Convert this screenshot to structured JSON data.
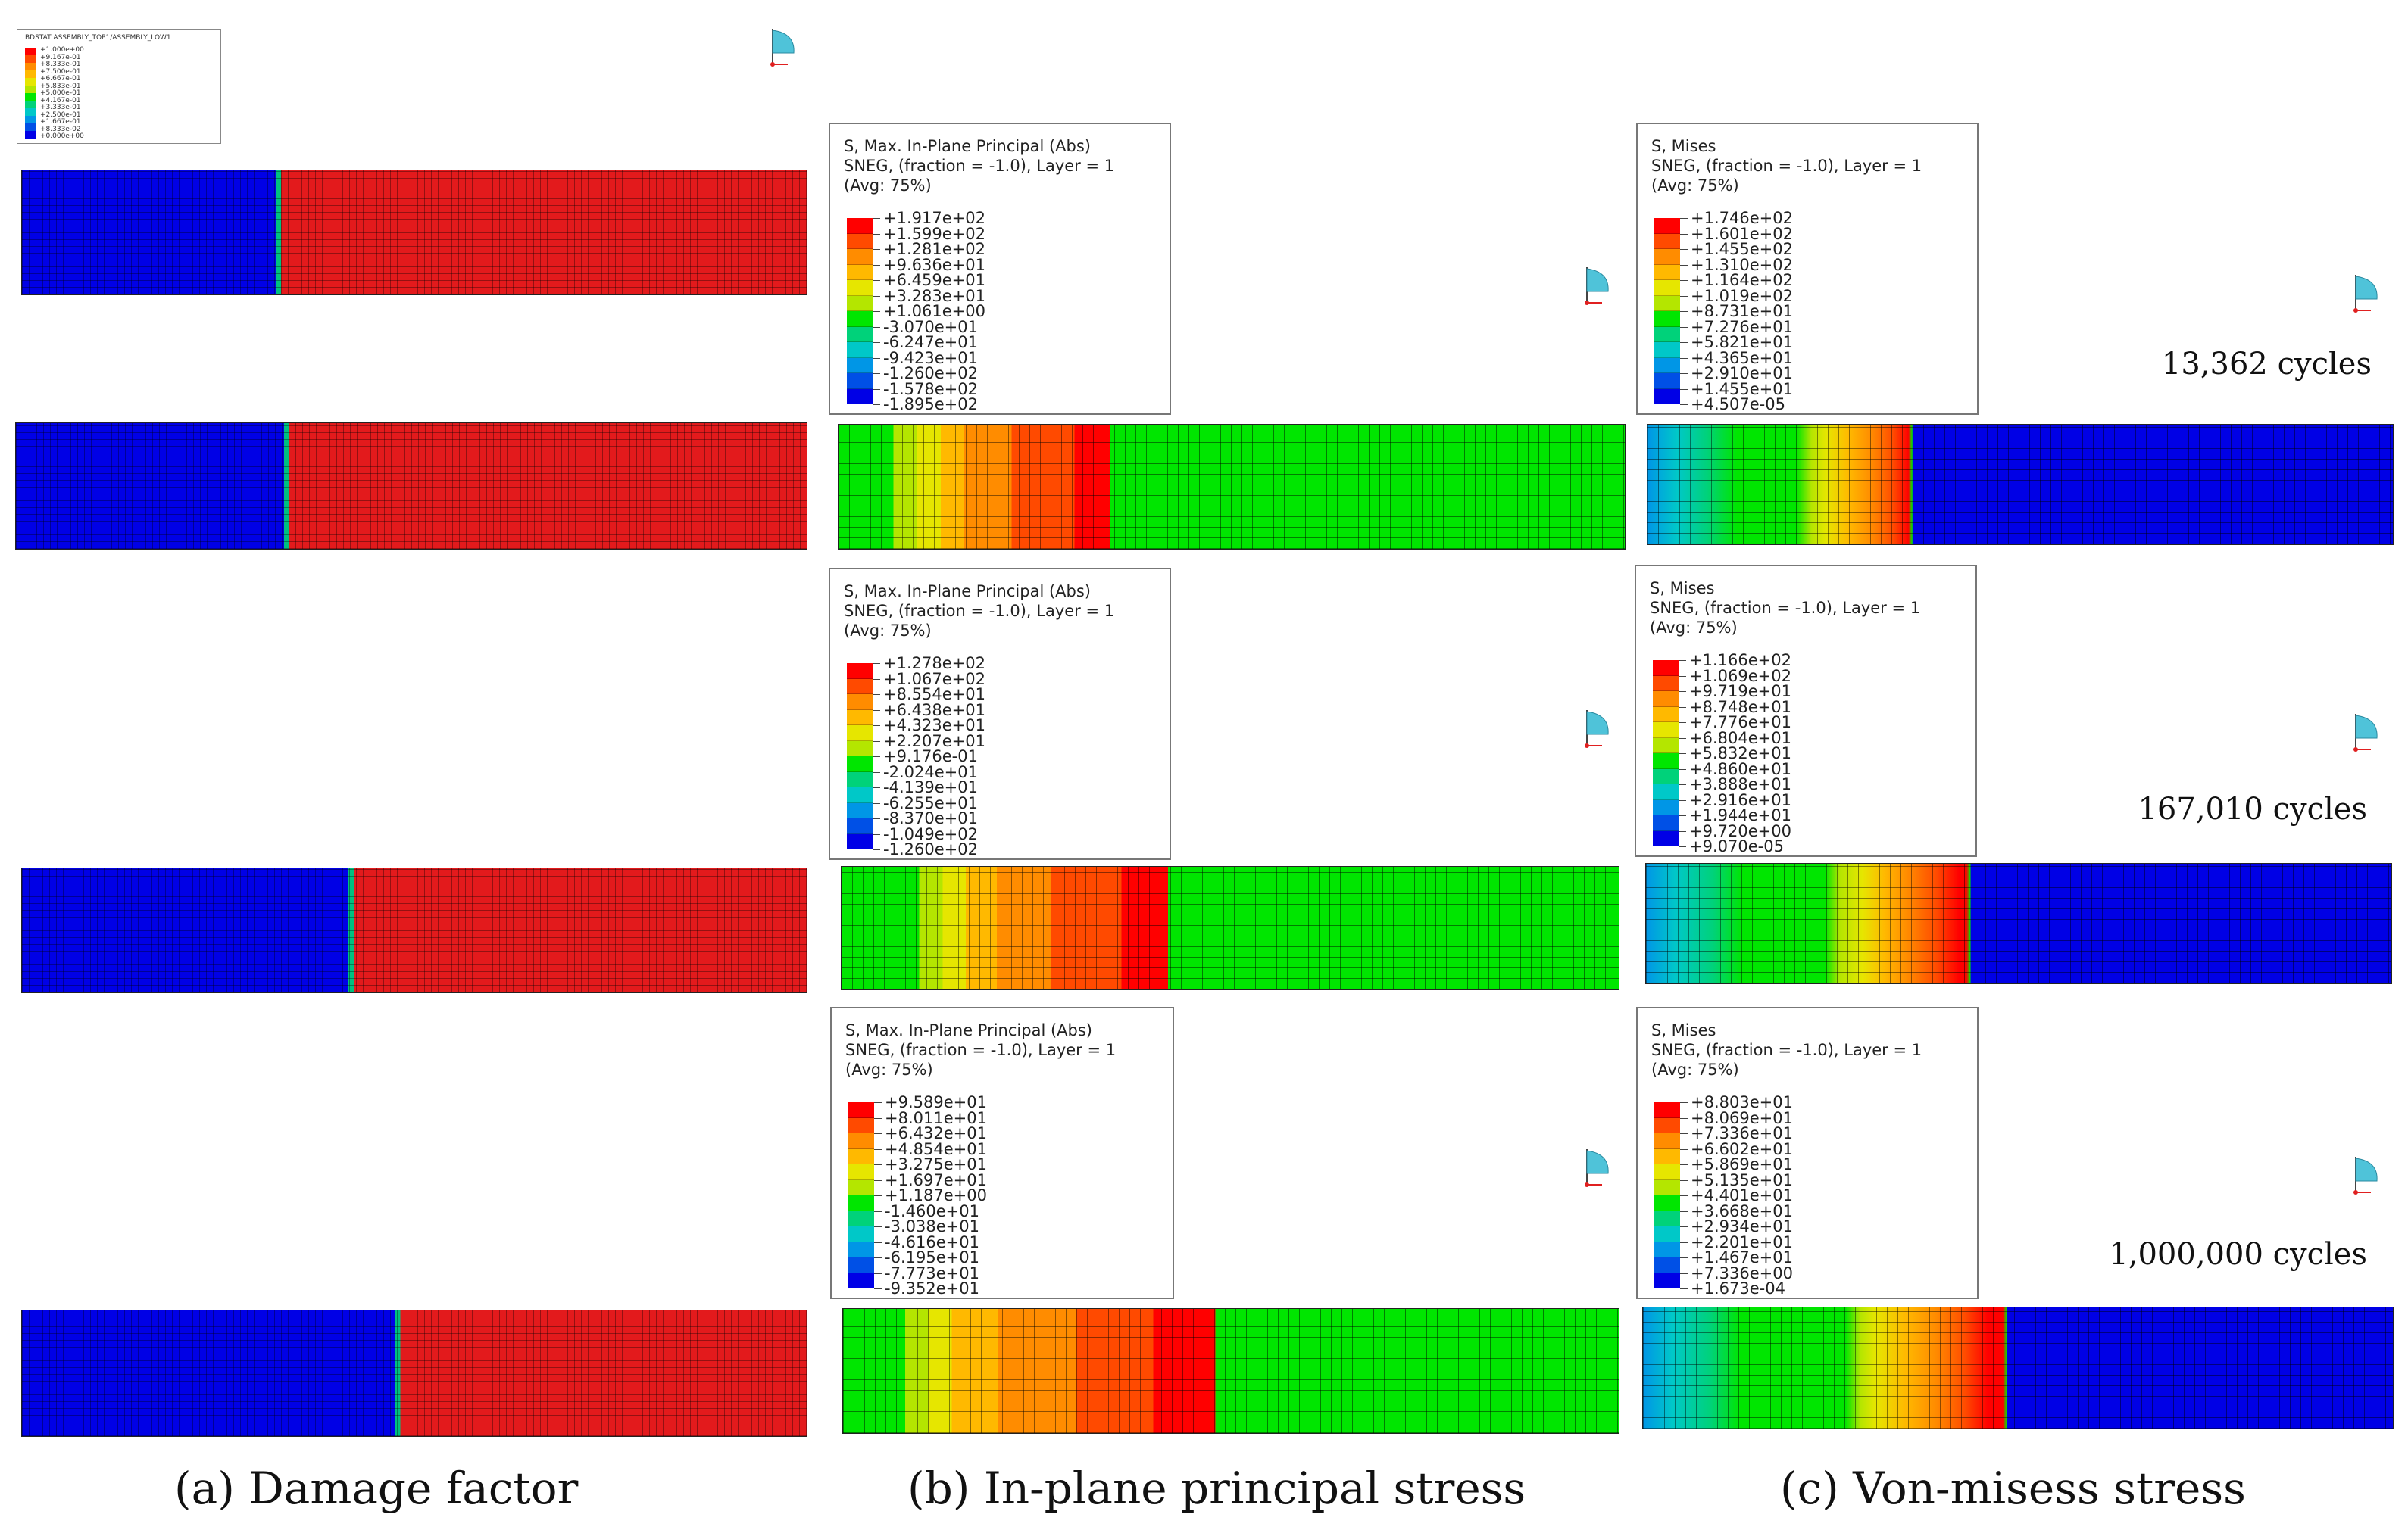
{
  "damage_legend": {
    "header": "BDSTAT   ASSEMBLY_TOP1/ASSEMBLY_LOW1",
    "values": [
      "+1.000e+00",
      "+9.167e-01",
      "+8.333e-01",
      "+7.500e-01",
      "+6.667e-01",
      "+5.833e-01",
      "+5.000e-01",
      "+4.167e-01",
      "+3.333e-01",
      "+2.500e-01",
      "+1.667e-01",
      "+8.333e-02",
      "+0.000e+00"
    ]
  },
  "principal_legends": [
    {
      "title": "S, Max. In-Plane Principal (Abs)",
      "line2": "SNEG, (fraction = -1.0), Layer = 1",
      "line3": "(Avg: 75%)",
      "values": [
        "+1.917e+02",
        "+1.599e+02",
        "+1.281e+02",
        "+9.636e+01",
        "+6.459e+01",
        "+3.283e+01",
        "+1.061e+00",
        "-3.070e+01",
        "-6.247e+01",
        "-9.423e+01",
        "-1.260e+02",
        "-1.578e+02",
        "-1.895e+02"
      ]
    },
    {
      "title": "S, Max. In-Plane Principal (Abs)",
      "line2": "SNEG, (fraction = -1.0), Layer = 1",
      "line3": "(Avg: 75%)",
      "values": [
        "+1.278e+02",
        "+1.067e+02",
        "+8.554e+01",
        "+6.438e+01",
        "+4.323e+01",
        "+2.207e+01",
        "+9.176e-01",
        "-2.024e+01",
        "-4.139e+01",
        "-6.255e+01",
        "-8.370e+01",
        "-1.049e+02",
        "-1.260e+02"
      ]
    },
    {
      "title": "S, Max. In-Plane Principal (Abs)",
      "line2": "SNEG, (fraction = -1.0), Layer = 1",
      "line3": "(Avg: 75%)",
      "values": [
        "+9.589e+01",
        "+8.011e+01",
        "+6.432e+01",
        "+4.854e+01",
        "+3.275e+01",
        "+1.697e+01",
        "+1.187e+00",
        "-1.460e+01",
        "-3.038e+01",
        "-4.616e+01",
        "-6.195e+01",
        "-7.773e+01",
        "-9.352e+01"
      ]
    }
  ],
  "mises_legends": [
    {
      "title": "S, Mises",
      "line2": "SNEG, (fraction = -1.0), Layer = 1",
      "line3": "(Avg: 75%)",
      "values": [
        "+1.746e+02",
        "+1.601e+02",
        "+1.455e+02",
        "+1.310e+02",
        "+1.164e+02",
        "+1.019e+02",
        "+8.731e+01",
        "+7.276e+01",
        "+5.821e+01",
        "+4.365e+01",
        "+2.910e+01",
        "+1.455e+01",
        "+4.507e-05"
      ]
    },
    {
      "title": "S, Mises",
      "line2": "SNEG, (fraction = -1.0), Layer = 1",
      "line3": "(Avg: 75%)",
      "values": [
        "+1.166e+02",
        "+1.069e+02",
        "+9.719e+01",
        "+8.748e+01",
        "+7.776e+01",
        "+6.804e+01",
        "+5.832e+01",
        "+4.860e+01",
        "+3.888e+01",
        "+2.916e+01",
        "+1.944e+01",
        "+9.720e+00",
        "+9.070e-05"
      ]
    },
    {
      "title": "S, Mises",
      "line2": "SNEG, (fraction = -1.0), Layer = 1",
      "line3": "(Avg: 75%)",
      "values": [
        "+8.803e+01",
        "+8.069e+01",
        "+7.336e+01",
        "+6.602e+01",
        "+5.869e+01",
        "+5.135e+01",
        "+4.401e+01",
        "+3.668e+01",
        "+2.934e+01",
        "+2.201e+01",
        "+1.467e+01",
        "+7.336e+00",
        "+1.673e-04"
      ]
    }
  ],
  "cycles": [
    "13,362 cycles",
    "167,010 cycles",
    "1,000,000 cycles"
  ],
  "captions": {
    "a": "(a) Damage factor",
    "b": "(b) In-plane principal stress",
    "c": "(c) Von-misess stress"
  },
  "colors": {
    "contour": [
      "#ff0000",
      "#ff4a00",
      "#ff8c00",
      "#ffb900",
      "#e6e600",
      "#b4e600",
      "#00e600",
      "#00e600",
      "#00d27a",
      "#00c8c8",
      "#0096e6",
      "#0050e6",
      "#0000e6"
    ],
    "damage_blue": "#0000e6",
    "damage_red": "#e31a1c"
  }
}
